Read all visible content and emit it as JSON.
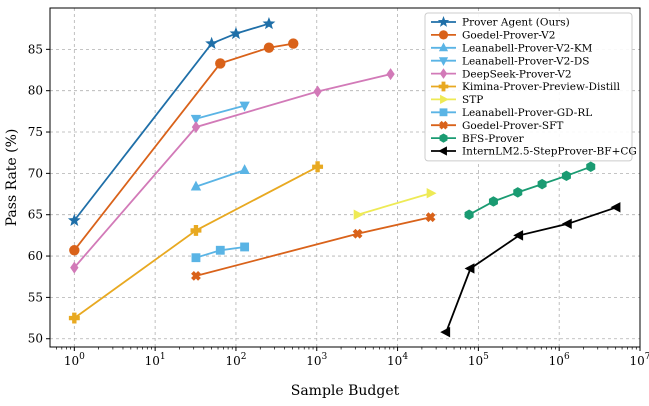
{
  "chart_data": {
    "type": "line",
    "title": "",
    "xlabel": "Sample Budget",
    "ylabel": "Pass Rate (%)",
    "xscale": "log",
    "xlim": [
      0.5,
      10000000
    ],
    "ylim": [
      49,
      90
    ],
    "grid": true,
    "legend_position": "top-right",
    "xticks": [
      {
        "value": 1,
        "base": "10",
        "exp": "0"
      },
      {
        "value": 10,
        "base": "10",
        "exp": "1"
      },
      {
        "value": 100,
        "base": "10",
        "exp": "2"
      },
      {
        "value": 1000,
        "base": "10",
        "exp": "3"
      },
      {
        "value": 10000,
        "base": "10",
        "exp": "4"
      },
      {
        "value": 100000,
        "base": "10",
        "exp": "5"
      },
      {
        "value": 1000000,
        "base": "10",
        "exp": "6"
      },
      {
        "value": 10000000,
        "base": "10",
        "exp": "7"
      }
    ],
    "yticks": [
      {
        "value": 50,
        "label": "50"
      },
      {
        "value": 55,
        "label": "55"
      },
      {
        "value": 60,
        "label": "60"
      },
      {
        "value": 65,
        "label": "65"
      },
      {
        "value": 70,
        "label": "70"
      },
      {
        "value": 75,
        "label": "75"
      },
      {
        "value": 80,
        "label": "80"
      },
      {
        "value": 85,
        "label": "85"
      }
    ],
    "series": [
      {
        "name": "Prover Agent (Ours)",
        "color": "#1f6fa8",
        "marker": "star",
        "x": [
          1,
          50,
          100,
          256
        ],
        "y": [
          64.3,
          85.7,
          86.9,
          88.1
        ]
      },
      {
        "name": "Goedel-Prover-V2",
        "color": "#d9621a",
        "marker": "circle",
        "x": [
          1,
          64,
          256,
          512
        ],
        "y": [
          60.7,
          83.3,
          85.2,
          85.7
        ]
      },
      {
        "name": "Leanabell-Prover-V2-KM",
        "color": "#5ab4e5",
        "marker": "triangle-up",
        "x": [
          32,
          128
        ],
        "y": [
          68.4,
          70.4
        ]
      },
      {
        "name": "Leanabell-Prover-V2-DS",
        "color": "#5ab4e5",
        "marker": "triangle-down",
        "x": [
          32,
          128
        ],
        "y": [
          76.6,
          78.2
        ]
      },
      {
        "name": "DeepSeek-Prover-V2",
        "color": "#d27ab8",
        "marker": "diamond",
        "x": [
          1,
          32,
          1024,
          8192
        ],
        "y": [
          58.6,
          75.6,
          79.9,
          82.0
        ]
      },
      {
        "name": "Kimina-Prover-Preview-Distill",
        "color": "#e8a921",
        "marker": "plus",
        "x": [
          1,
          32,
          1024
        ],
        "y": [
          52.5,
          63.1,
          70.8
        ]
      },
      {
        "name": "STP",
        "color": "#eeea55",
        "marker": "triangle-right",
        "x": [
          3200,
          25600
        ],
        "y": [
          65.0,
          67.6
        ]
      },
      {
        "name": "Leanabell-Prover-GD-RL",
        "color": "#5ab4e5",
        "marker": "square",
        "x": [
          32,
          64,
          128
        ],
        "y": [
          59.8,
          60.7,
          61.1
        ]
      },
      {
        "name": "Goedel-Prover-SFT",
        "color": "#d9621a",
        "marker": "x",
        "x": [
          32,
          3200,
          25600
        ],
        "y": [
          57.6,
          62.7,
          64.7
        ]
      },
      {
        "name": "BFS-Prover",
        "color": "#1a9b72",
        "marker": "hexagon",
        "x": [
          76800,
          153600,
          307200,
          614400,
          1228800,
          2457600
        ],
        "y": [
          65.0,
          66.6,
          67.7,
          68.7,
          69.7,
          70.8
        ]
      },
      {
        "name": "InternLM2.5-StepProver-BF+CG",
        "color": "#000000",
        "marker": "triangle-left",
        "x": [
          40000,
          80000,
          320000,
          1280000,
          5120000
        ],
        "y": [
          50.8,
          58.5,
          62.5,
          63.9,
          65.9
        ]
      }
    ]
  }
}
